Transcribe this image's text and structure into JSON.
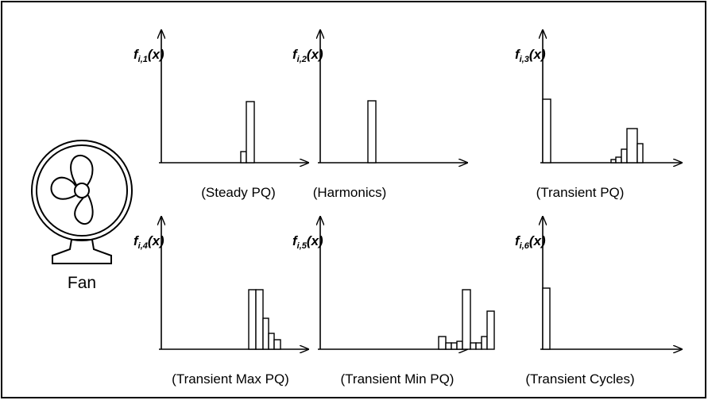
{
  "device": "Fan",
  "panels": [
    {
      "symbol": "f",
      "index": "i,1",
      "argument": "(x)",
      "caption": "(Steady PQ)"
    },
    {
      "symbol": "f",
      "index": "i,2",
      "argument": "(x)",
      "caption": "(Harmonics)"
    },
    {
      "symbol": "f",
      "index": "i,3",
      "argument": "(x)",
      "caption": "(Transient PQ)"
    },
    {
      "symbol": "f",
      "index": "i,4",
      "argument": "(x)",
      "caption": "(Transient Max PQ)"
    },
    {
      "symbol": "f",
      "index": "i,5",
      "argument": "(x)",
      "caption": "(Transient Min PQ)"
    },
    {
      "symbol": "f",
      "index": "i,6",
      "argument": "(x)",
      "caption": "(Transient Cycles)"
    }
  ]
}
